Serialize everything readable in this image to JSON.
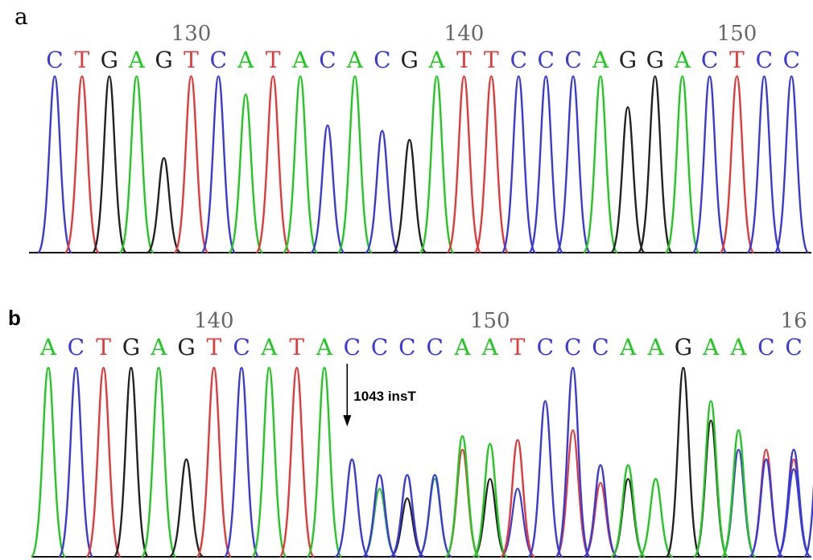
{
  "colors": {
    "A": "#22c722",
    "C": "#3a3ad8",
    "G": "#222222",
    "T": "#e23a3a",
    "baseline": "#111111",
    "position": "#666666",
    "annotation": "#000000"
  },
  "chart_data": [
    {
      "type": "chromatogram",
      "panel_label": "a",
      "sequence": [
        "C",
        "T",
        "G",
        "A",
        "G",
        "T",
        "C",
        "A",
        "T",
        "A",
        "C",
        "A",
        "C",
        "G",
        "A",
        "T",
        "T",
        "C",
        "C",
        "C",
        "A",
        "G",
        "G",
        "A",
        "C",
        "T",
        "C",
        "C"
      ],
      "position_labels": [
        {
          "text": "130",
          "base_index": 5
        },
        {
          "text": "140",
          "base_index": 15
        },
        {
          "text": "150",
          "base_index": 25
        }
      ],
      "peak_heights": [
        0.97,
        0.97,
        0.97,
        0.97,
        0.52,
        0.97,
        0.97,
        0.87,
        0.97,
        0.97,
        0.7,
        0.97,
        0.67,
        0.62,
        0.97,
        0.97,
        0.97,
        0.97,
        0.97,
        0.97,
        0.97,
        0.8,
        0.97,
        0.97,
        0.97,
        0.97,
        0.97,
        0.97
      ],
      "secondary_peaks": []
    },
    {
      "type": "chromatogram",
      "panel_label": "b",
      "sequence": [
        "A",
        "C",
        "T",
        "G",
        "A",
        "G",
        "T",
        "C",
        "A",
        "T",
        "A",
        "C",
        "C",
        "C",
        "C",
        "A",
        "A",
        "T",
        "C",
        "C",
        "C",
        "A",
        "A",
        "G",
        "A",
        "A",
        "C",
        "C",
        "C"
      ],
      "position_labels": [
        {
          "text": "140",
          "base_index": 6
        },
        {
          "text": "150",
          "base_index": 16
        },
        {
          "text": "16",
          "base_index": 27
        }
      ],
      "peak_heights": [
        0.97,
        0.97,
        0.97,
        0.97,
        0.97,
        0.5,
        0.97,
        0.97,
        0.97,
        0.97,
        0.97,
        0.5,
        0.42,
        0.42,
        0.42,
        0.62,
        0.58,
        0.6,
        0.8,
        0.97,
        0.47,
        0.47,
        0.4,
        0.97,
        0.8,
        0.65,
        0.5,
        0.55,
        0.97
      ],
      "secondary_peaks": [
        {
          "base_index": 12,
          "base": "A",
          "height": 0.35
        },
        {
          "base_index": 13,
          "base": "G",
          "height": 0.3
        },
        {
          "base_index": 14,
          "base": "A",
          "height": 0.4
        },
        {
          "base_index": 15,
          "base": "T",
          "height": 0.55
        },
        {
          "base_index": 16,
          "base": "G",
          "height": 0.4
        },
        {
          "base_index": 17,
          "base": "C",
          "height": 0.35
        },
        {
          "base_index": 19,
          "base": "T",
          "height": 0.65
        },
        {
          "base_index": 20,
          "base": "T",
          "height": 0.38
        },
        {
          "base_index": 21,
          "base": "G",
          "height": 0.4
        },
        {
          "base_index": 24,
          "base": "G",
          "height": 0.7
        },
        {
          "base_index": 25,
          "base": "C",
          "height": 0.55
        },
        {
          "base_index": 26,
          "base": "T",
          "height": 0.55
        },
        {
          "base_index": 27,
          "base": "T",
          "height": 0.5
        },
        {
          "base_index": 27,
          "base": "C",
          "height": 0.45
        }
      ],
      "annotation": {
        "text": "1043 insT",
        "base_index": 11
      }
    }
  ]
}
